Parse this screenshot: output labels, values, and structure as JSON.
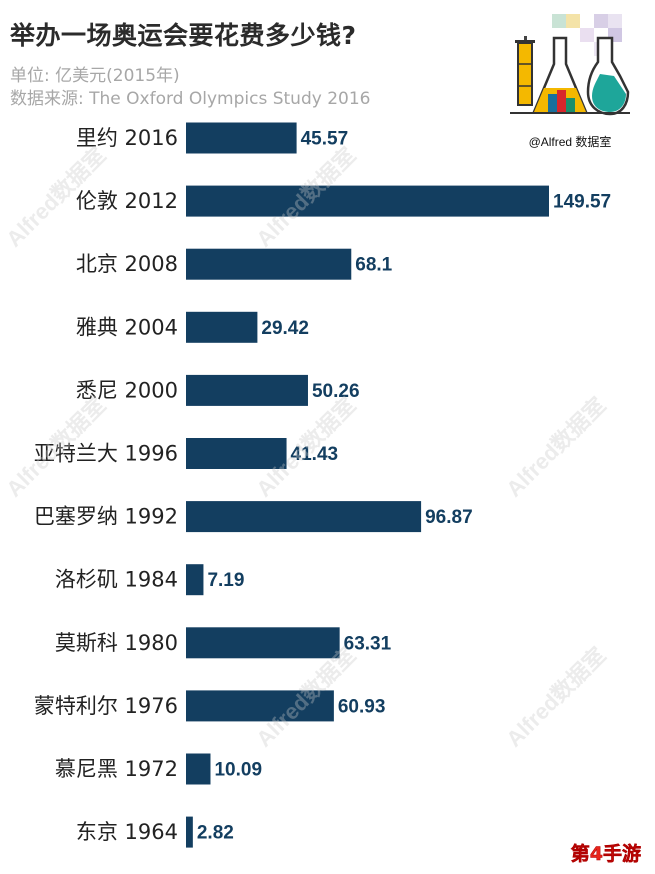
{
  "header": {
    "title": "举办一场奥运会要花费多少钱?",
    "unit_line": "单位: 亿美元(2015年)",
    "source_line": "数据来源: The Oxford Olympics Study 2016"
  },
  "logo": {
    "caption": "@Alfred 数据室"
  },
  "watermark_text": "Alfred数据室",
  "site_mark": "第4手游",
  "colors": {
    "bar": "#133e60",
    "label": "#133e60",
    "category": "#222222"
  },
  "chart_data": {
    "type": "bar",
    "orientation": "horizontal",
    "title": "举办一场奥运会要花费多少钱?",
    "xlabel": "",
    "ylabel": "",
    "grid": false,
    "legend": "none",
    "categories": [
      "里约 2016",
      "伦敦 2012",
      "北京 2008",
      "雅典 2004",
      "悉尼 2000",
      "亚特兰大 1996",
      "巴塞罗纳 1992",
      "洛杉矶 1984",
      "莫斯科 1980",
      "蒙特利尔 1976",
      "慕尼黑 1972",
      "东京 1964"
    ],
    "values": [
      45.57,
      149.57,
      68.1,
      29.42,
      50.26,
      41.43,
      96.87,
      7.19,
      63.31,
      60.93,
      10.09,
      2.82
    ],
    "value_labels": [
      "45.57",
      "149.57",
      "68.1",
      "29.42",
      "50.26",
      "41.43",
      "96.87",
      "7.19",
      "63.31",
      "60.93",
      "10.09",
      "2.82"
    ],
    "xlim": [
      0,
      149.57
    ]
  }
}
